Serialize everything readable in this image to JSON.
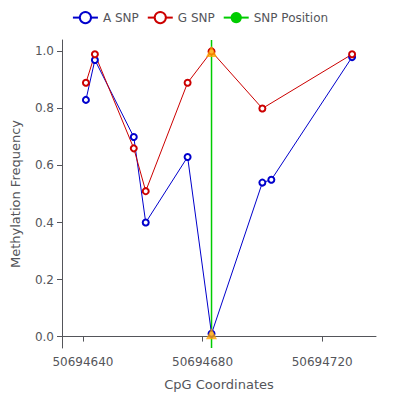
{
  "chart_data": {
    "type": "line",
    "xlabel": "CpG Coordinates",
    "ylabel": "Methylation Frequency",
    "series": [
      {
        "name": "A SNP",
        "color": "#0000cc",
        "marker": "o",
        "x": [
          50694641,
          50694644,
          50694657,
          50694661,
          50694675,
          50694683,
          50694700,
          50694703,
          50694730
        ],
        "values": [
          0.83,
          0.97,
          0.7,
          0.4,
          0.63,
          0.01,
          0.54,
          0.55,
          0.98
        ]
      },
      {
        "name": "G SNP",
        "color": "#cc0000",
        "marker": "o",
        "x": [
          50694641,
          50694644,
          50694657,
          50694661,
          50694675,
          50694683,
          50694700,
          50694730
        ],
        "values": [
          0.89,
          0.99,
          0.66,
          0.51,
          0.89,
          1.0,
          0.8,
          0.99
        ]
      },
      {
        "name": "SNP Position",
        "type": "vline",
        "color": "#00cc00",
        "x": [
          50694683
        ]
      },
      {
        "type": "scatter",
        "marker": "triangle",
        "color": "#ffa500",
        "x": [
          50694683,
          50694683
        ],
        "values": [
          0.01,
          1.0
        ]
      }
    ],
    "xlim": [
      50694633,
      50694738
    ],
    "ylim": [
      -0.04,
      1.04
    ],
    "xticks": [
      50694640,
      50694680,
      50694720
    ],
    "yticks": [
      {
        "value": 0.0,
        "label": "0.0"
      },
      0.2,
      0.4,
      0.6,
      0.8,
      {
        "value": 1.0,
        "label": "1.0"
      }
    ],
    "grid": false,
    "legend": "top"
  }
}
